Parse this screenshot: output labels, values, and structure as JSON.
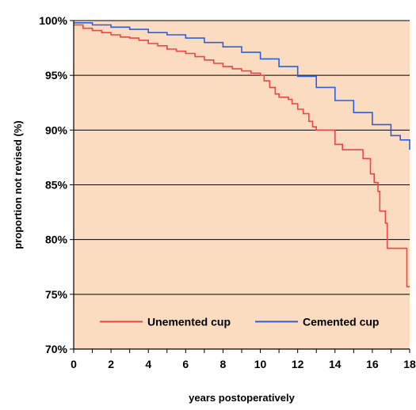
{
  "chart_data": {
    "type": "line",
    "step": true,
    "title": "",
    "xlabel": "years postoperatively",
    "ylabel": "proportion not revised (%)",
    "xlim": [
      0,
      18
    ],
    "ylim": [
      70,
      100
    ],
    "x_ticks": [
      0,
      2,
      4,
      6,
      8,
      10,
      12,
      14,
      16,
      18
    ],
    "x_tick_labels": [
      "0",
      "2",
      "4",
      "6",
      "8",
      "10",
      "12",
      "14",
      "16",
      "18"
    ],
    "y_ticks": [
      70,
      75,
      80,
      85,
      90,
      95,
      100
    ],
    "y_tick_labels": [
      "70%",
      "75%",
      "80%",
      "85%",
      "90%",
      "95%",
      "100%"
    ],
    "grid": {
      "horizontal": true,
      "vertical": false
    },
    "plot_background": "#fbdcc0",
    "legend": {
      "position": "bottom-inside"
    },
    "series": [
      {
        "name": "Unemented cup",
        "color": "#f04545",
        "points": [
          [
            0,
            99.6
          ],
          [
            0.5,
            99.3
          ],
          [
            1,
            99.1
          ],
          [
            1.5,
            98.9
          ],
          [
            2,
            98.7
          ],
          [
            2.5,
            98.5
          ],
          [
            3,
            98.4
          ],
          [
            3.5,
            98.2
          ],
          [
            4,
            97.9
          ],
          [
            4.5,
            97.7
          ],
          [
            5,
            97.4
          ],
          [
            5.5,
            97.2
          ],
          [
            6,
            97.0
          ],
          [
            6.5,
            96.7
          ],
          [
            7,
            96.4
          ],
          [
            7.5,
            96.1
          ],
          [
            8,
            95.8
          ],
          [
            8.5,
            95.6
          ],
          [
            9,
            95.4
          ],
          [
            9.5,
            95.2
          ],
          [
            10,
            95.0
          ],
          [
            10.2,
            94.5
          ],
          [
            10.5,
            93.9
          ],
          [
            10.8,
            93.3
          ],
          [
            11,
            93.0
          ],
          [
            11.5,
            92.8
          ],
          [
            11.7,
            92.4
          ],
          [
            12,
            91.9
          ],
          [
            12.3,
            91.5
          ],
          [
            12.6,
            90.8
          ],
          [
            12.8,
            90.3
          ],
          [
            13,
            90.0
          ],
          [
            14,
            90.0
          ],
          [
            14.0,
            88.7
          ],
          [
            14.4,
            88.2
          ],
          [
            15.5,
            87.4
          ],
          [
            15.9,
            86.0
          ],
          [
            16.1,
            85.2
          ],
          [
            16.3,
            84.4
          ],
          [
            16.4,
            82.6
          ],
          [
            16.7,
            81.5
          ],
          [
            16.8,
            79.2
          ],
          [
            17.8,
            79.2
          ],
          [
            17.85,
            75.7
          ],
          [
            18,
            75.7
          ]
        ]
      },
      {
        "name": "Cemented cup",
        "color": "#2a5fe0",
        "points": [
          [
            0,
            99.8
          ],
          [
            1,
            99.6
          ],
          [
            2,
            99.4
          ],
          [
            3,
            99.2
          ],
          [
            4,
            98.9
          ],
          [
            5,
            98.7
          ],
          [
            6,
            98.4
          ],
          [
            7,
            98.0
          ],
          [
            8,
            97.6
          ],
          [
            9,
            97.1
          ],
          [
            10,
            96.5
          ],
          [
            11,
            95.8
          ],
          [
            12,
            94.9
          ],
          [
            13,
            93.9
          ],
          [
            14,
            92.7
          ],
          [
            15,
            91.6
          ],
          [
            16,
            90.5
          ],
          [
            17,
            89.5
          ],
          [
            17.5,
            89.1
          ],
          [
            18,
            88.2
          ]
        ]
      }
    ]
  }
}
